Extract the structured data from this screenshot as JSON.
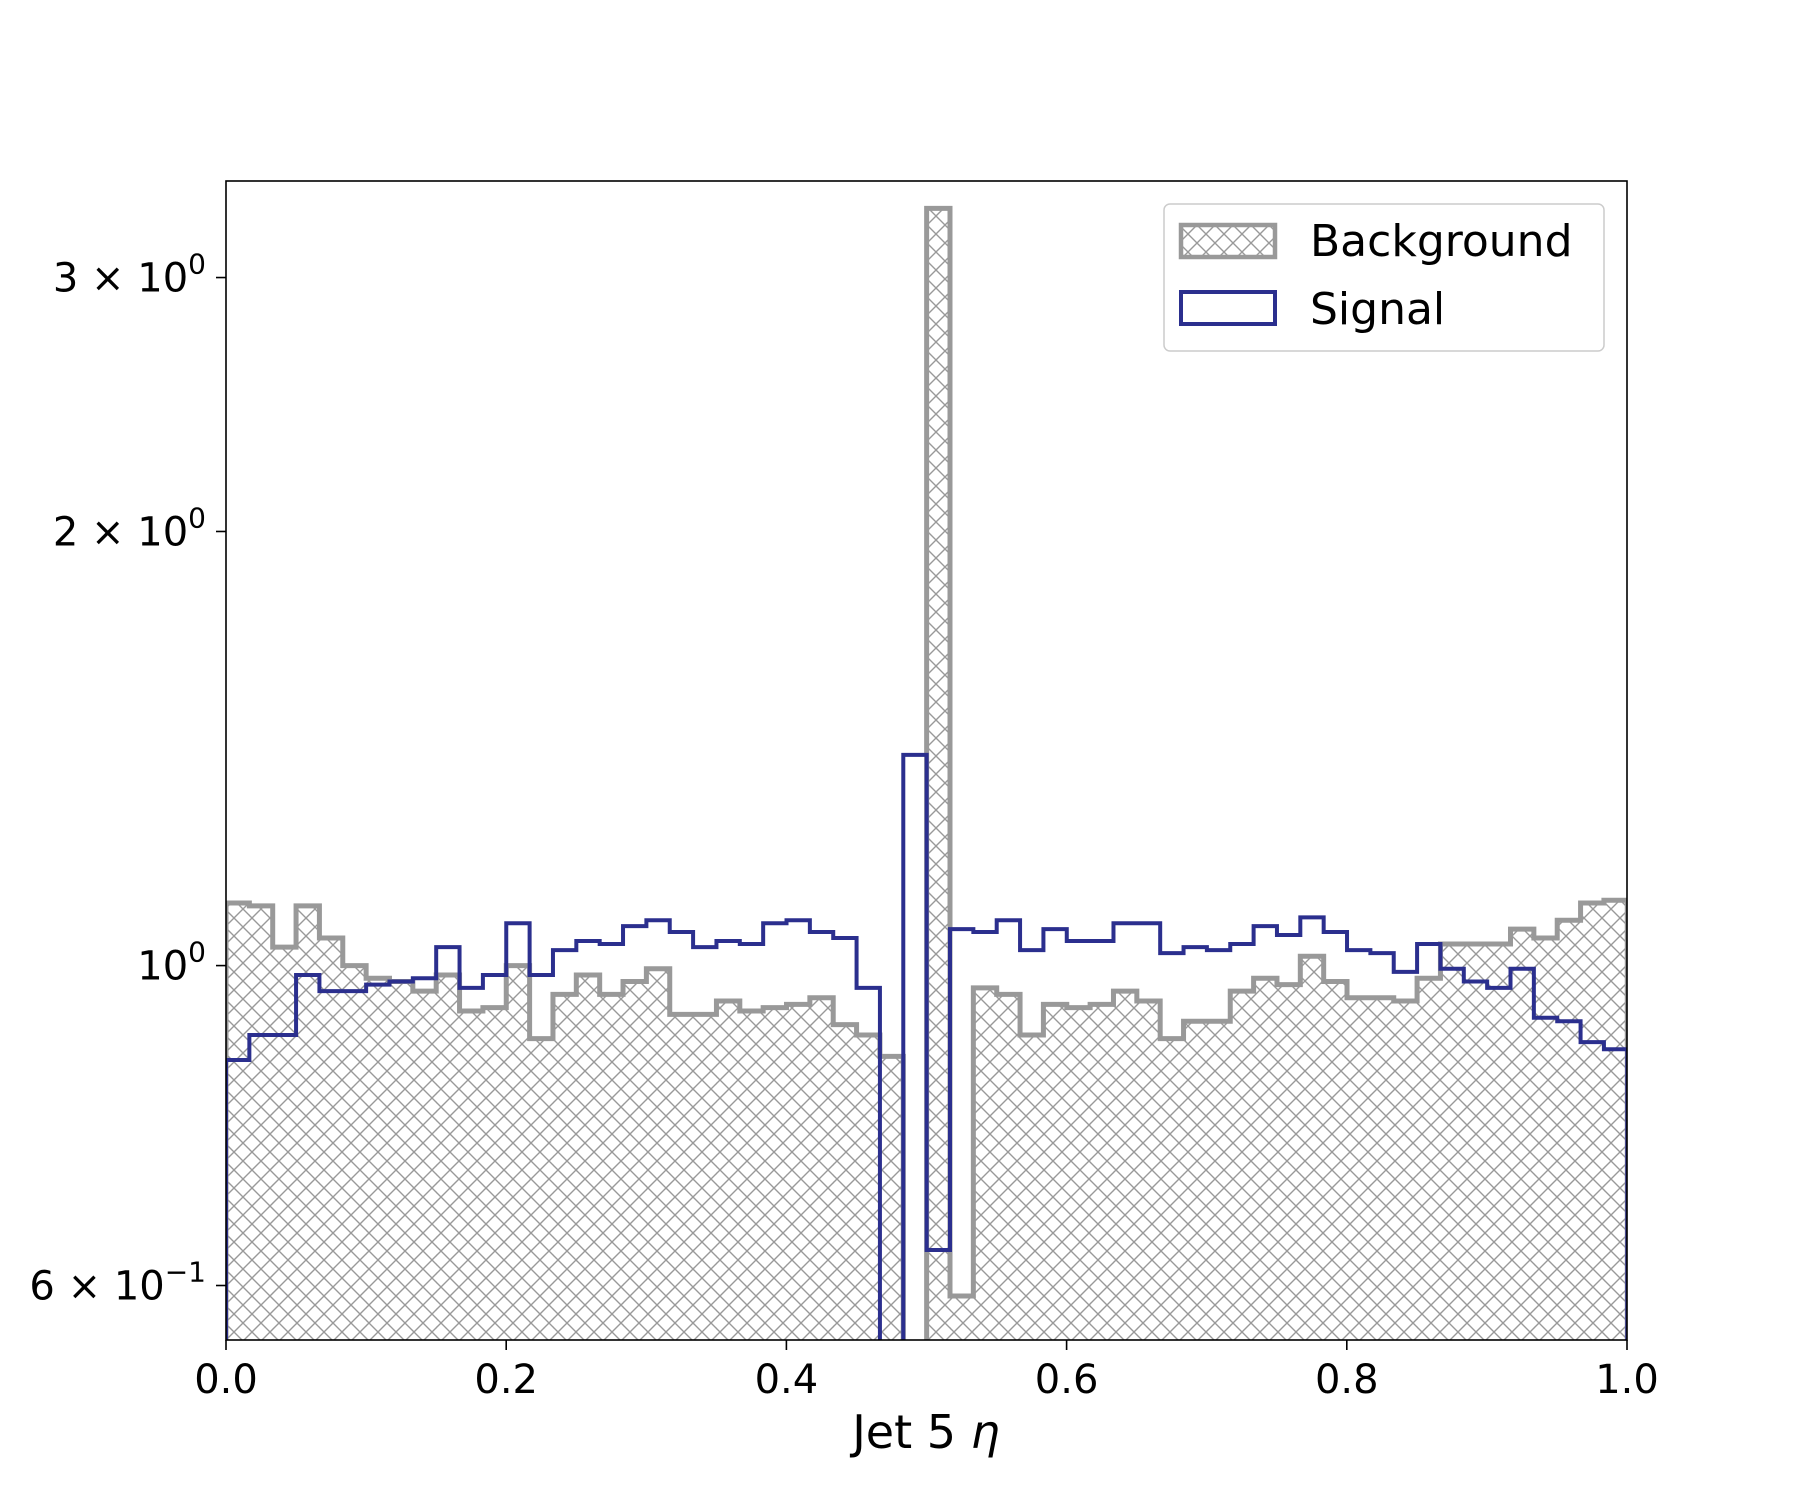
{
  "chart_data": {
    "type": "histogram",
    "title": "",
    "xlabel": "Jet 5 η",
    "ylabel": "",
    "xlim": [
      0.0,
      1.0
    ],
    "ylim": [
      0.55,
      3.5
    ],
    "yscale": "log",
    "grid": false,
    "legend_position": "top-right",
    "x_ticks": [
      {
        "value": 0.0,
        "label": "0.0"
      },
      {
        "value": 0.2,
        "label": "0.2"
      },
      {
        "value": 0.4,
        "label": "0.4"
      },
      {
        "value": 0.6,
        "label": "0.6"
      },
      {
        "value": 0.8,
        "label": "0.8"
      },
      {
        "value": 1.0,
        "label": "1.0"
      }
    ],
    "y_ticks": [
      {
        "value": 0.6,
        "mantissa": "6",
        "base": "10",
        "exponent": "−1"
      },
      {
        "value": 1.0,
        "mantissa": "",
        "base": "10",
        "exponent": "0"
      },
      {
        "value": 2.0,
        "mantissa": "2",
        "base": "10",
        "exponent": "0"
      },
      {
        "value": 3.0,
        "mantissa": "3",
        "base": "10",
        "exponent": "0"
      }
    ],
    "bin_width": 0.01667,
    "bin_edges_start": 0.0,
    "series": [
      {
        "name": "Background",
        "style": "hatched",
        "color": "#999999",
        "values": [
          1.105,
          1.1,
          1.03,
          1.1,
          1.045,
          1.0,
          0.98,
          0.975,
          0.96,
          0.985,
          0.93,
          0.935,
          1.0,
          0.89,
          0.955,
          0.985,
          0.955,
          0.975,
          0.995,
          0.925,
          0.925,
          0.945,
          0.93,
          0.935,
          0.94,
          0.95,
          0.91,
          0.895,
          0.865,
          0.0,
          3.35,
          0.59,
          0.965,
          0.955,
          0.895,
          0.94,
          0.935,
          0.94,
          0.96,
          0.945,
          0.89,
          0.915,
          0.915,
          0.96,
          0.98,
          0.97,
          1.015,
          0.975,
          0.95,
          0.95,
          0.945,
          0.98,
          1.035,
          1.035,
          1.035,
          1.06,
          1.045,
          1.075,
          1.105,
          1.11
        ]
      },
      {
        "name": "Signal",
        "style": "step",
        "color": "#2b2f8e",
        "values": [
          0.86,
          0.895,
          0.895,
          0.985,
          0.96,
          0.96,
          0.97,
          0.975,
          0.98,
          1.03,
          0.965,
          0.985,
          1.07,
          0.985,
          1.025,
          1.04,
          1.035,
          1.065,
          1.075,
          1.055,
          1.03,
          1.04,
          1.035,
          1.07,
          1.075,
          1.055,
          1.045,
          0.965,
          0.0,
          1.4,
          0.635,
          1.06,
          1.055,
          1.075,
          1.025,
          1.06,
          1.04,
          1.04,
          1.07,
          1.07,
          1.02,
          1.03,
          1.025,
          1.035,
          1.065,
          1.05,
          1.08,
          1.055,
          1.025,
          1.02,
          0.99,
          1.035,
          0.995,
          0.975,
          0.965,
          0.995,
          0.92,
          0.915,
          0.885,
          0.875
        ]
      }
    ]
  }
}
